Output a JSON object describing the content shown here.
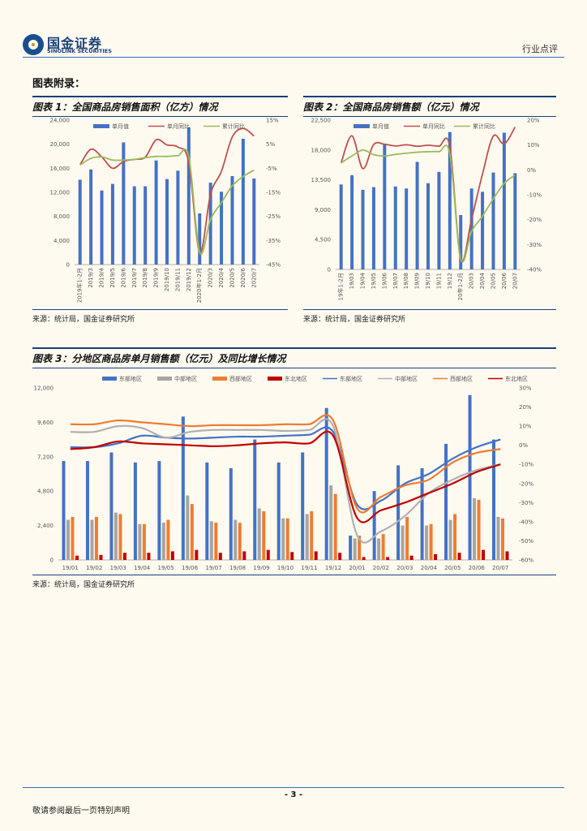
{
  "header": {
    "logo_cn": "国金证券",
    "logo_en": "SINOLINK SECURITIES",
    "category": "行业点评"
  },
  "section_title": "图表附录：",
  "footer": {
    "page_number": "- 3 -",
    "disclaimer": "敬请参阅最后一页特别声明"
  },
  "chart_data": [
    {
      "id": "fig1",
      "type": "bar",
      "title": "图表 1：全国商品房销售面积（亿方）情况",
      "source": "来源：统计局，国金证券研究所",
      "categories": [
        "2019年1-2月",
        "2019/3",
        "2019/4",
        "2019/5",
        "2019/6",
        "2019/7",
        "2019/8",
        "2019/9",
        "2019/10",
        "2019/11",
        "2019/12",
        "2020年1-2月",
        "2020/3",
        "2020/4",
        "2020/5",
        "2020/6",
        "2020/7"
      ],
      "y_left": {
        "min": 0,
        "max": 24000,
        "ticks": [
          "0",
          "4,000",
          "8,000",
          "12,000",
          "16,000",
          "20,000",
          "24,000"
        ]
      },
      "y_right": {
        "min": -45,
        "max": 15,
        "ticks": [
          "-45%",
          "-35%",
          "-25%",
          "-15%",
          "-5%",
          "5%",
          "15%"
        ]
      },
      "series": [
        {
          "name": "单月值",
          "axis": "left",
          "color": "#4472c4",
          "type": "bar",
          "values": [
            14100,
            15800,
            12300,
            13400,
            20300,
            13000,
            13000,
            17300,
            14200,
            15600,
            22800,
            8500,
            13600,
            12100,
            14700,
            20900,
            14300
          ]
        },
        {
          "name": "单月同比",
          "axis": "right",
          "color": "#c0504d",
          "type": "line",
          "values": [
            -3.6,
            2.9,
            -0.3,
            -5,
            -2.2,
            -1.3,
            -0.4,
            6.8,
            4.7,
            3.8,
            -2.5,
            -39.9,
            -15.8,
            -6.3,
            8,
            11.5,
            8.4
          ]
        },
        {
          "name": "累计同比",
          "axis": "right",
          "color": "#9bbb59",
          "type": "line",
          "values": [
            -3.6,
            -0.9,
            -0.3,
            -1.6,
            -1.6,
            -1.3,
            -0.6,
            -0.1,
            -0.1,
            0.2,
            -0.1,
            -39.9,
            -26.3,
            -19.3,
            -12.3,
            -8.4,
            -5.8
          ]
        }
      ]
    },
    {
      "id": "fig2",
      "type": "bar",
      "title": "图表 2：全国商品房销售额（亿元）情况",
      "source": "来源：统计局，国金证券研究所",
      "categories": [
        "19年1-2月",
        "19/03",
        "19/04",
        "19/05",
        "19/06",
        "19/07",
        "19/08",
        "19/09",
        "19/10",
        "19/11",
        "19/12",
        "20年1-2月",
        "20/03",
        "20/04",
        "20/05",
        "20/06",
        "20/07"
      ],
      "y_left": {
        "min": 0,
        "max": 22500,
        "ticks": [
          "0",
          "4,500",
          "9,000",
          "13,500",
          "18,000",
          "22,500"
        ]
      },
      "y_right": {
        "min": -40,
        "max": 20,
        "ticks": [
          "-40%",
          "-30%",
          "-20%",
          "-10%",
          "0%",
          "10%",
          "20%"
        ]
      },
      "series": [
        {
          "name": "单月值",
          "axis": "left",
          "color": "#4472c4",
          "type": "bar",
          "values": [
            12800,
            14200,
            12000,
            12400,
            18900,
            12500,
            12200,
            16200,
            13000,
            14700,
            20700,
            8200,
            12200,
            11700,
            14600,
            20600,
            14500
          ]
        },
        {
          "name": "单月同比",
          "axis": "right",
          "color": "#c0504d",
          "type": "line",
          "values": [
            2.8,
            13.7,
            0.5,
            10.2,
            10.3,
            9.6,
            10.1,
            9.5,
            9.9,
            9.5,
            9.4,
            -35.9,
            -19.8,
            -1.7,
            13.6,
            10.4,
            17.2
          ]
        },
        {
          "name": "累计同比",
          "axis": "right",
          "color": "#9bbb59",
          "type": "line",
          "values": [
            2.8,
            5.6,
            8,
            6.1,
            5.6,
            6.2,
            6.7,
            7.1,
            7.3,
            7.3,
            6.5,
            -35.9,
            -24.7,
            -18.6,
            -11.6,
            -5.4,
            -2.1
          ]
        }
      ]
    },
    {
      "id": "fig3",
      "type": "bar",
      "title": "图表 3：分地区商品房单月销售额（亿元）及同比增长情况",
      "source": "来源：统计局，国金证券研究所",
      "categories": [
        "19/01",
        "19/02",
        "19/03",
        "19/04",
        "19/05",
        "19/06",
        "19/07",
        "19/08",
        "19/09",
        "19/10",
        "19/11",
        "19/12",
        "20/01",
        "20/02",
        "20/03",
        "20/04",
        "20/05",
        "20/06",
        "20/07"
      ],
      "y_left": {
        "min": 0,
        "max": 12000,
        "ticks": [
          "0",
          "2,400",
          "4,800",
          "7,200",
          "9,600",
          "12,000"
        ]
      },
      "y_right": {
        "min": -60,
        "max": 30,
        "ticks": [
          "-60%",
          "-50%",
          "-40%",
          "-30%",
          "-20%",
          "-10%",
          "0%",
          "10%",
          "20%",
          "30%"
        ]
      },
      "series": [
        {
          "name": "东部地区",
          "axis": "left",
          "color": "#4472c4",
          "type": "bar",
          "values": [
            6900,
            6900,
            7500,
            6800,
            6900,
            10000,
            6800,
            6400,
            8400,
            6800,
            7500,
            10600,
            1700,
            4800,
            6600,
            6400,
            8100,
            11500,
            8400
          ]
        },
        {
          "name": "中部地区",
          "axis": "left",
          "color": "#a5a5a5",
          "type": "bar",
          "values": [
            2800,
            2800,
            3300,
            2500,
            2600,
            4500,
            2700,
            2800,
            3600,
            2900,
            3200,
            5200,
            1500,
            1500,
            2400,
            2400,
            2800,
            4300,
            3000
          ]
        },
        {
          "name": "西部地区",
          "axis": "left",
          "color": "#ed7d31",
          "type": "bar",
          "values": [
            3000,
            3000,
            3200,
            2500,
            2800,
            3900,
            2600,
            2600,
            3400,
            2900,
            3400,
            4600,
            1700,
            1800,
            3000,
            2500,
            3200,
            4200,
            2900
          ]
        },
        {
          "name": "东北地区",
          "axis": "left",
          "color": "#c00000",
          "type": "bar",
          "values": [
            300,
            350,
            500,
            500,
            600,
            700,
            500,
            600,
            700,
            550,
            600,
            500,
            200,
            200,
            300,
            400,
            500,
            700,
            600
          ]
        },
        {
          "name": "东部地区",
          "axis": "right",
          "color": "#4472c4",
          "type": "line",
          "values": [
            -1,
            -1,
            1,
            5,
            4,
            3.5,
            4,
            4.5,
            4.5,
            5,
            5.5,
            7,
            -31,
            -29,
            -20,
            -15,
            -7,
            -1,
            3
          ]
        },
        {
          "name": "中部地区",
          "axis": "right",
          "color": "#b0b0b0",
          "type": "line",
          "values": [
            7,
            7,
            10,
            9,
            4,
            7,
            8,
            8,
            8,
            7.5,
            8,
            10,
            -47,
            -45,
            -37,
            -25,
            -18,
            -13,
            -10
          ]
        },
        {
          "name": "西部地区",
          "axis": "right",
          "color": "#ed7d31",
          "type": "line",
          "values": [
            11,
            11,
            13,
            12,
            11,
            10,
            10.5,
            10.5,
            10.5,
            11,
            11,
            13,
            -33,
            -27,
            -21,
            -18,
            -9,
            -4,
            -2
          ]
        },
        {
          "name": "东北地区",
          "axis": "right",
          "color": "#c00000",
          "type": "line",
          "values": [
            -2,
            -1,
            2,
            1,
            0.5,
            0,
            -0.5,
            0,
            1,
            1.5,
            1,
            5,
            -38,
            -34,
            -30,
            -25,
            -20,
            -14,
            -10
          ]
        }
      ]
    }
  ]
}
